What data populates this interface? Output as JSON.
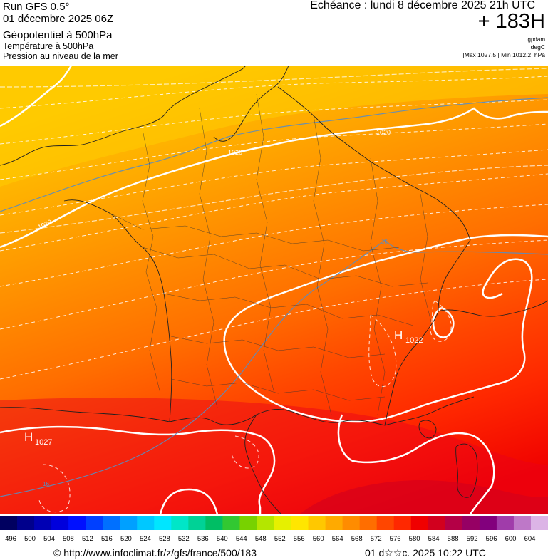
{
  "header": {
    "run_title": "Run GFS 0.5°",
    "run_date": "01 décembre 2025 06Z",
    "param_primary": "Géopotentiel à 500hPa",
    "param_secondary": "Température à 500hPa",
    "param_tertiary": "Pression au niveau de la mer",
    "valid_time": "Echéance : lundi 8 décembre 2025 21h UTC",
    "lead_time": "+ 183H",
    "unit_geopotential": "gpdam",
    "unit_temperature": "degC",
    "pressure_range": "[Max 1027.5 | Min 1012.2] hPa"
  },
  "map_labels": {
    "isobar_1020_north": "1020",
    "isobar_1020_channel": "1020",
    "isobar_1020_brittany": "1020",
    "isobar_1016_center": "16",
    "isobar_1016_sw": "16",
    "high_symbol": "H",
    "high_alps_value": "1022",
    "high_iberia_value": "1027"
  },
  "scale": {
    "labels": [
      "496",
      "500",
      "504",
      "508",
      "512",
      "516",
      "520",
      "524",
      "528",
      "532",
      "536",
      "540",
      "544",
      "548",
      "552",
      "556",
      "560",
      "564",
      "568",
      "572",
      "576",
      "580",
      "584",
      "588",
      "592",
      "596",
      "600",
      "604"
    ],
    "colors": [
      "#000060",
      "#00008c",
      "#0000b4",
      "#0000dc",
      "#0010ff",
      "#0040ff",
      "#0070ff",
      "#00a0ff",
      "#00c8ff",
      "#00e6ff",
      "#00e6c8",
      "#00d296",
      "#00be64",
      "#32c832",
      "#78d200",
      "#b4e600",
      "#e6f000",
      "#ffe600",
      "#ffc800",
      "#ffaa00",
      "#ff8c00",
      "#ff6e00",
      "#ff4600",
      "#ff2800",
      "#f00000",
      "#d2001e",
      "#b40046",
      "#960064",
      "#82007d",
      "#a03caa",
      "#be78c8",
      "#dcb4e6"
    ]
  },
  "footer": {
    "url": "© http://www.infoclimat.fr/z/gfs/france/500/183",
    "generated": "01 d☆☆c. 2025 10:22 UTC"
  }
}
